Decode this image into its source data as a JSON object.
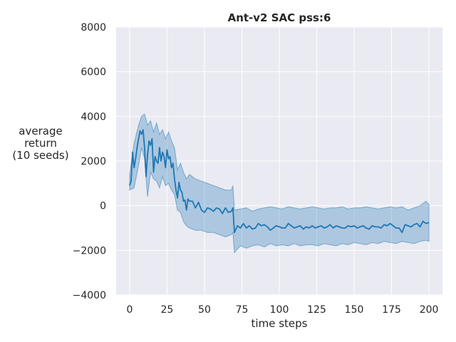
{
  "chart_data": {
    "type": "line",
    "title": "Ant-v2 SAC pss:6",
    "xlabel": "time steps",
    "ylabel": [
      "average",
      "return",
      "(10 seeds)"
    ],
    "xlim": [
      -9,
      209
    ],
    "ylim": [
      -4000,
      8000
    ],
    "xticks": [
      0,
      25,
      50,
      75,
      100,
      125,
      150,
      175,
      200
    ],
    "yticks": [
      -4000,
      -2000,
      0,
      2000,
      4000,
      6000,
      8000
    ],
    "grid": true,
    "colors": {
      "background": "#EAEAF2",
      "grid": "#FFFFFF",
      "line": "#1F77B4",
      "band": "#1F77B4"
    },
    "series": [
      {
        "name": "mean",
        "x": [
          0,
          1,
          2,
          3,
          4,
          5,
          6,
          7,
          8,
          9,
          10,
          11,
          12,
          13,
          14,
          15,
          16,
          17,
          18,
          19,
          20,
          21,
          22,
          23,
          24,
          25,
          26,
          27,
          28,
          29,
          30,
          31,
          32,
          33,
          34,
          35,
          36,
          37,
          38,
          39,
          40,
          42,
          44,
          46,
          48,
          50,
          52,
          54,
          56,
          58,
          60,
          62,
          64,
          66,
          68,
          69,
          70,
          72,
          74,
          76,
          78,
          80,
          82,
          84,
          86,
          88,
          90,
          92,
          94,
          96,
          98,
          100,
          102,
          104,
          106,
          108,
          110,
          112,
          114,
          116,
          118,
          120,
          122,
          124,
          126,
          128,
          130,
          132,
          134,
          136,
          138,
          140,
          142,
          144,
          146,
          148,
          150,
          152,
          154,
          156,
          158,
          160,
          162,
          164,
          166,
          168,
          170,
          172,
          174,
          176,
          178,
          180,
          182,
          184,
          186,
          188,
          190,
          192,
          194,
          196,
          198,
          200
        ],
        "y": [
          900,
          1100,
          2400,
          1700,
          2100,
          2600,
          3000,
          3350,
          3200,
          3400,
          2600,
          1300,
          2300,
          2900,
          2700,
          3000,
          1500,
          2200,
          2000,
          1900,
          2600,
          2000,
          2400,
          2200,
          1700,
          2500,
          2100,
          2200,
          1700,
          1900,
          1200,
          700,
          350,
          1050,
          700,
          600,
          200,
          250,
          -200,
          300,
          200,
          200,
          -100,
          150,
          -200,
          -300,
          -100,
          -150,
          -250,
          -100,
          -150,
          -350,
          -100,
          -300,
          -250,
          -100,
          -1200,
          -900,
          -1000,
          -800,
          -1000,
          -900,
          -1050,
          -1000,
          -800,
          -900,
          -850,
          -950,
          -1100,
          -1000,
          -900,
          -950,
          -1000,
          -1000,
          -800,
          -900,
          -1000,
          -950,
          -900,
          -1050,
          -950,
          -1000,
          -900,
          -1000,
          -950,
          -900,
          -1000,
          -950,
          -850,
          -1000,
          -900,
          -950,
          -1000,
          -1000,
          -900,
          -950,
          -900,
          -1000,
          -950,
          -900,
          -1000,
          -1050,
          -900,
          -950,
          -950,
          -1000,
          -850,
          -900,
          -800,
          -900,
          -1000,
          -1000,
          -1200,
          -850,
          -900,
          -950,
          -850,
          -800,
          -950,
          -700,
          -800,
          -750
        ]
      },
      {
        "name": "upper",
        "x": [
          0,
          3,
          6,
          8,
          10,
          12,
          14,
          16,
          18,
          20,
          22,
          24,
          26,
          28,
          30,
          32,
          34,
          36,
          38,
          40,
          44,
          48,
          52,
          56,
          60,
          64,
          68,
          69,
          70,
          74,
          78,
          82,
          86,
          90,
          94,
          98,
          102,
          106,
          110,
          114,
          118,
          122,
          126,
          130,
          134,
          138,
          142,
          146,
          150,
          154,
          158,
          162,
          166,
          170,
          174,
          178,
          182,
          186,
          190,
          194,
          198,
          200
        ],
        "y": [
          1400,
          2800,
          3600,
          4000,
          4100,
          3600,
          3800,
          3300,
          3700,
          3200,
          3400,
          3000,
          3300,
          2900,
          2600,
          1600,
          1900,
          1500,
          1200,
          1400,
          1200,
          1100,
          1000,
          900,
          800,
          700,
          700,
          900,
          -200,
          -150,
          -100,
          -250,
          -150,
          -100,
          -50,
          -100,
          -150,
          -50,
          -100,
          -150,
          -100,
          -50,
          -100,
          -150,
          -100,
          -100,
          -50,
          -150,
          -100,
          -100,
          -50,
          -100,
          -150,
          -100,
          -50,
          -100,
          -50,
          -200,
          -100,
          0,
          200,
          50
        ]
      },
      {
        "name": "lower",
        "x": [
          0,
          3,
          6,
          8,
          10,
          12,
          14,
          16,
          18,
          20,
          22,
          24,
          26,
          28,
          30,
          32,
          34,
          36,
          38,
          40,
          44,
          48,
          52,
          56,
          60,
          64,
          68,
          69,
          70,
          74,
          78,
          82,
          86,
          90,
          94,
          98,
          102,
          106,
          110,
          114,
          118,
          122,
          126,
          130,
          134,
          138,
          142,
          146,
          150,
          154,
          158,
          162,
          166,
          170,
          174,
          178,
          182,
          186,
          190,
          194,
          198,
          200
        ],
        "y": [
          700,
          800,
          1800,
          2600,
          2100,
          400,
          1500,
          1200,
          1100,
          800,
          1300,
          900,
          1000,
          700,
          500,
          -200,
          -300,
          -700,
          -900,
          -1000,
          -1100,
          -1100,
          -1200,
          -1200,
          -1300,
          -1400,
          -1300,
          -1200,
          -2100,
          -1800,
          -1900,
          -1800,
          -1750,
          -1850,
          -1700,
          -1800,
          -1750,
          -1800,
          -1700,
          -1800,
          -1750,
          -1750,
          -1800,
          -1700,
          -1750,
          -1800,
          -1700,
          -1750,
          -1650,
          -1700,
          -1750,
          -1650,
          -1700,
          -1600,
          -1650,
          -1700,
          -1600,
          -1650,
          -1700,
          -1600,
          -1550,
          -1600
        ]
      }
    ]
  }
}
